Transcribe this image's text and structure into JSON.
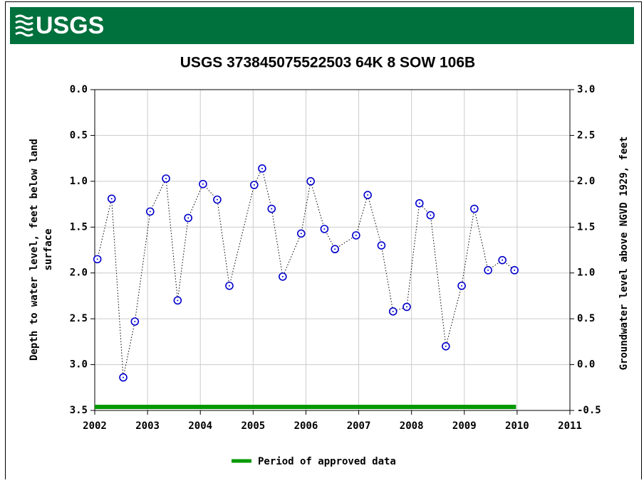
{
  "header": {
    "logo": "USGS"
  },
  "chart_data": {
    "type": "scatter-line",
    "title": "USGS 373845075522503 64K  8 SOW 106B",
    "y_label": [
      "Depth to water level, feet below land",
      "surface"
    ],
    "y2_label": "Groundwater level above NGVD 1929, feet",
    "x": [
      2002.05,
      2002.32,
      2002.54,
      2002.76,
      2003.05,
      2003.35,
      2003.57,
      2003.77,
      2004.05,
      2004.32,
      2004.55,
      2005.02,
      2005.17,
      2005.35,
      2005.56,
      2005.91,
      2006.09,
      2006.35,
      2006.55,
      2006.95,
      2007.17,
      2007.43,
      2007.65,
      2007.91,
      2008.15,
      2008.36,
      2008.65,
      2008.95,
      2009.19,
      2009.45,
      2009.72,
      2009.95
    ],
    "series": [
      {
        "color": "#0000cc",
        "values": [
          1.85,
          1.19,
          3.14,
          2.53,
          1.33,
          0.97,
          2.3,
          1.4,
          1.03,
          1.2,
          2.14,
          1.04,
          0.86,
          1.3,
          2.04,
          1.57,
          1.0,
          1.52,
          1.74,
          1.59,
          1.15,
          1.7,
          2.42,
          2.37,
          1.24,
          1.37,
          2.8,
          2.14,
          1.3,
          1.97,
          1.86,
          1.97
        ]
      }
    ],
    "xlim": [
      2002,
      2011
    ],
    "xticks": [
      2002,
      2003,
      2004,
      2005,
      2006,
      2007,
      2008,
      2009,
      2010,
      2011
    ],
    "ylim": [
      3.5,
      0
    ],
    "yticks": [
      {
        "value": 0,
        "label": "0.0"
      },
      0.5,
      {
        "value": 1,
        "label": "1.0"
      },
      1.5,
      {
        "value": 2,
        "label": "2.0"
      },
      2.5,
      {
        "value": 3,
        "label": "3.0"
      },
      3.5
    ],
    "y2lim": [
      -0.5,
      3
    ],
    "y2ticks": [
      {
        "value": 3,
        "label": "3.0"
      },
      2.5,
      {
        "value": 2,
        "label": "2.0"
      },
      1.5,
      {
        "value": 1,
        "label": "1.0"
      },
      0.5,
      {
        "value": 0,
        "label": "0.0"
      },
      -0.5
    ],
    "grid": true,
    "approved_period": {
      "name": "Period of approved data",
      "color": "#009900",
      "x": [
        2002,
        2009.98
      ]
    }
  }
}
